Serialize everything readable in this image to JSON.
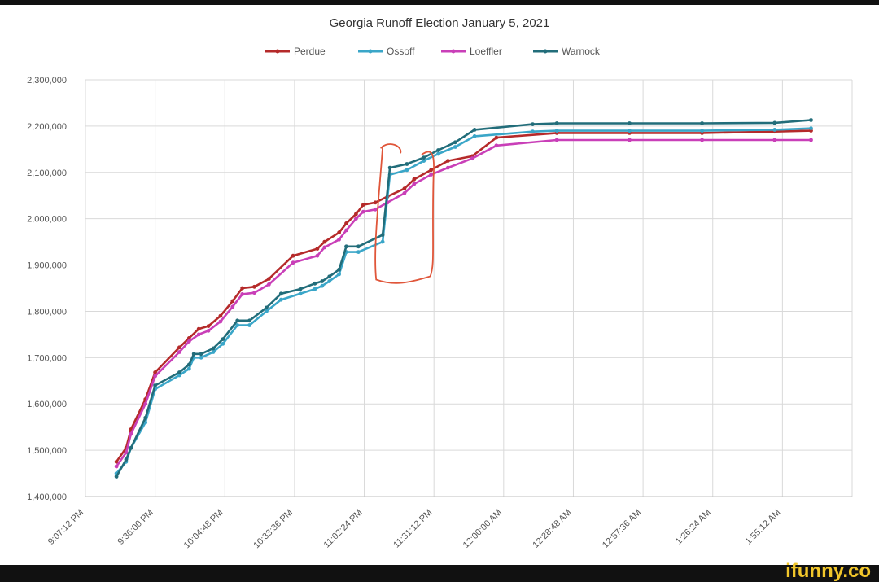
{
  "chart_data": {
    "type": "line",
    "title": "Georgia Runoff Election January 5, 2021",
    "xlabel": "",
    "ylabel": "",
    "x_tick_labels": [
      "9:07:12 PM",
      "9:36:00 PM",
      "10:04:48 PM",
      "10:33:36 PM",
      "11:02:24 PM",
      "11:31:12 PM",
      "12:00:00 AM",
      "12:28:48 AM",
      "12:57:36 AM",
      "1:26:24 AM",
      "1:55:12 AM"
    ],
    "xlim": [
      "9:07:12 PM",
      "2:24:00 AM"
    ],
    "y_tick_labels": [
      "1,400,000",
      "1,500,000",
      "1,600,000",
      "1,700,000",
      "1,800,000",
      "1,900,000",
      "2,000,000",
      "2,100,000",
      "2,200,000",
      "2,300,000"
    ],
    "ylim": [
      1400000,
      2300000
    ],
    "grid": true,
    "legend_position": "top-center",
    "series": [
      {
        "name": "Perdue",
        "color": "#b52a2a",
        "points": [
          [
            "9:20 PM",
            1475000
          ],
          [
            "9:24 PM",
            1505000
          ],
          [
            "9:26 PM",
            1545000
          ],
          [
            "9:32 PM",
            1610000
          ],
          [
            "9:36 PM",
            1668000
          ],
          [
            "9:46 PM",
            1722000
          ],
          [
            "9:50 PM",
            1742000
          ],
          [
            "9:54 PM",
            1762000
          ],
          [
            "9:58 PM",
            1768000
          ],
          [
            "10:03 PM",
            1790000
          ],
          [
            "10:08 PM",
            1822000
          ],
          [
            "10:12 PM",
            1850000
          ],
          [
            "10:17 PM",
            1853000
          ],
          [
            "10:23 PM",
            1870000
          ],
          [
            "10:33 PM",
            1920000
          ],
          [
            "10:43 PM",
            1935000
          ],
          [
            "10:46 PM",
            1950000
          ],
          [
            "10:52 PM",
            1970000
          ],
          [
            "10:55 PM",
            1990000
          ],
          [
            "10:59 PM",
            2010000
          ],
          [
            "11:02 PM",
            2030000
          ],
          [
            "11:07 PM",
            2035000
          ],
          [
            "11:12 PM",
            2048000
          ],
          [
            "11:19 PM",
            2065000
          ],
          [
            "11:23 PM",
            2085000
          ],
          [
            "11:30 PM",
            2105000
          ],
          [
            "11:37 PM",
            2125000
          ],
          [
            "11:47 PM",
            2135000
          ],
          [
            "11:57 PM",
            2175000
          ],
          [
            "12:22 AM",
            2185000
          ],
          [
            "12:52 AM",
            2185000
          ],
          [
            "1:22 AM",
            2185000
          ],
          [
            "1:52 AM",
            2188000
          ],
          [
            "2:07 AM",
            2190000
          ]
        ]
      },
      {
        "name": "Ossoff",
        "color": "#3aa6c8",
        "points": [
          [
            "9:20 PM",
            1450000
          ],
          [
            "9:24 PM",
            1475000
          ],
          [
            "9:26 PM",
            1505000
          ],
          [
            "9:32 PM",
            1560000
          ],
          [
            "9:36 PM",
            1632000
          ],
          [
            "9:46 PM",
            1662000
          ],
          [
            "9:50 PM",
            1676000
          ],
          [
            "9:52 PM",
            1700000
          ],
          [
            "9:55 PM",
            1700000
          ],
          [
            "10:00 PM",
            1712000
          ],
          [
            "10:04 PM",
            1730000
          ],
          [
            "10:10 PM",
            1770000
          ],
          [
            "10:15 PM",
            1770000
          ],
          [
            "10:22 PM",
            1800000
          ],
          [
            "10:28 PM",
            1825000
          ],
          [
            "10:36 PM",
            1838000
          ],
          [
            "10:42 PM",
            1848000
          ],
          [
            "10:45 PM",
            1855000
          ],
          [
            "10:48 PM",
            1865000
          ],
          [
            "10:52 PM",
            1880000
          ],
          [
            "10:55 PM",
            1928000
          ],
          [
            "11:00 PM",
            1928000
          ],
          [
            "11:10 PM",
            1950000
          ],
          [
            "11:13 PM",
            2095000
          ],
          [
            "11:20 PM",
            2105000
          ],
          [
            "11:27 PM",
            2125000
          ],
          [
            "11:33 PM",
            2140000
          ],
          [
            "11:40 PM",
            2155000
          ],
          [
            "11:48 PM",
            2178000
          ],
          [
            "12:12 AM",
            2188000
          ],
          [
            "12:22 AM",
            2190000
          ],
          [
            "12:52 AM",
            2190000
          ],
          [
            "1:22 AM",
            2190000
          ],
          [
            "1:52 AM",
            2192000
          ],
          [
            "2:07 AM",
            2195000
          ]
        ]
      },
      {
        "name": "Loeffler",
        "color": "#c93fb8",
        "points": [
          [
            "9:20 PM",
            1465000
          ],
          [
            "9:24 PM",
            1495000
          ],
          [
            "9:26 PM",
            1535000
          ],
          [
            "9:32 PM",
            1600000
          ],
          [
            "9:36 PM",
            1660000
          ],
          [
            "9:46 PM",
            1712000
          ],
          [
            "9:50 PM",
            1735000
          ],
          [
            "9:54 PM",
            1750000
          ],
          [
            "9:58 PM",
            1758000
          ],
          [
            "10:03 PM",
            1778000
          ],
          [
            "10:08 PM",
            1810000
          ],
          [
            "10:12 PM",
            1837000
          ],
          [
            "10:17 PM",
            1840000
          ],
          [
            "10:23 PM",
            1858000
          ],
          [
            "10:33 PM",
            1905000
          ],
          [
            "10:43 PM",
            1920000
          ],
          [
            "10:46 PM",
            1938000
          ],
          [
            "10:52 PM",
            1955000
          ],
          [
            "10:55 PM",
            1975000
          ],
          [
            "10:59 PM",
            2000000
          ],
          [
            "11:02 PM",
            2015000
          ],
          [
            "11:07 PM",
            2020000
          ],
          [
            "11:12 PM",
            2035000
          ],
          [
            "11:19 PM",
            2055000
          ],
          [
            "11:23 PM",
            2075000
          ],
          [
            "11:30 PM",
            2095000
          ],
          [
            "11:37 PM",
            2110000
          ],
          [
            "11:47 PM",
            2130000
          ],
          [
            "11:57 PM",
            2158000
          ],
          [
            "12:22 AM",
            2170000
          ],
          [
            "12:52 AM",
            2170000
          ],
          [
            "1:22 AM",
            2170000
          ],
          [
            "1:52 AM",
            2170000
          ],
          [
            "2:07 AM",
            2170000
          ]
        ]
      },
      {
        "name": "Warnock",
        "color": "#226d7a",
        "points": [
          [
            "9:20 PM",
            1443000
          ],
          [
            "9:24 PM",
            1480000
          ],
          [
            "9:26 PM",
            1505000
          ],
          [
            "9:32 PM",
            1570000
          ],
          [
            "9:36 PM",
            1640000
          ],
          [
            "9:46 PM",
            1668000
          ],
          [
            "9:50 PM",
            1685000
          ],
          [
            "9:52 PM",
            1708000
          ],
          [
            "9:55 PM",
            1708000
          ],
          [
            "10:00 PM",
            1720000
          ],
          [
            "10:04 PM",
            1740000
          ],
          [
            "10:10 PM",
            1780000
          ],
          [
            "10:15 PM",
            1780000
          ],
          [
            "10:22 PM",
            1808000
          ],
          [
            "10:28 PM",
            1838000
          ],
          [
            "10:36 PM",
            1848000
          ],
          [
            "10:42 PM",
            1860000
          ],
          [
            "10:45 PM",
            1865000
          ],
          [
            "10:48 PM",
            1875000
          ],
          [
            "10:52 PM",
            1890000
          ],
          [
            "10:55 PM",
            1940000
          ],
          [
            "11:00 PM",
            1940000
          ],
          [
            "11:10 PM",
            1965000
          ],
          [
            "11:13 PM",
            2110000
          ],
          [
            "11:20 PM",
            2118000
          ],
          [
            "11:27 PM",
            2132000
          ],
          [
            "11:33 PM",
            2148000
          ],
          [
            "11:40 PM",
            2165000
          ],
          [
            "11:48 PM",
            2192000
          ],
          [
            "12:12 AM",
            2204000
          ],
          [
            "12:22 AM",
            2206000
          ],
          [
            "12:52 AM",
            2206000
          ],
          [
            "1:22 AM",
            2206000
          ],
          [
            "1:52 AM",
            2207000
          ],
          [
            "2:07 AM",
            2213000
          ]
        ]
      }
    ],
    "annotations": [
      {
        "type": "hand-drawn-rectangle",
        "color": "#e0563a",
        "from": [
          "11:08 PM",
          1865000
        ],
        "to": [
          "11:31 PM",
          2160000
        ]
      }
    ]
  },
  "watermark": "ifunny.co"
}
